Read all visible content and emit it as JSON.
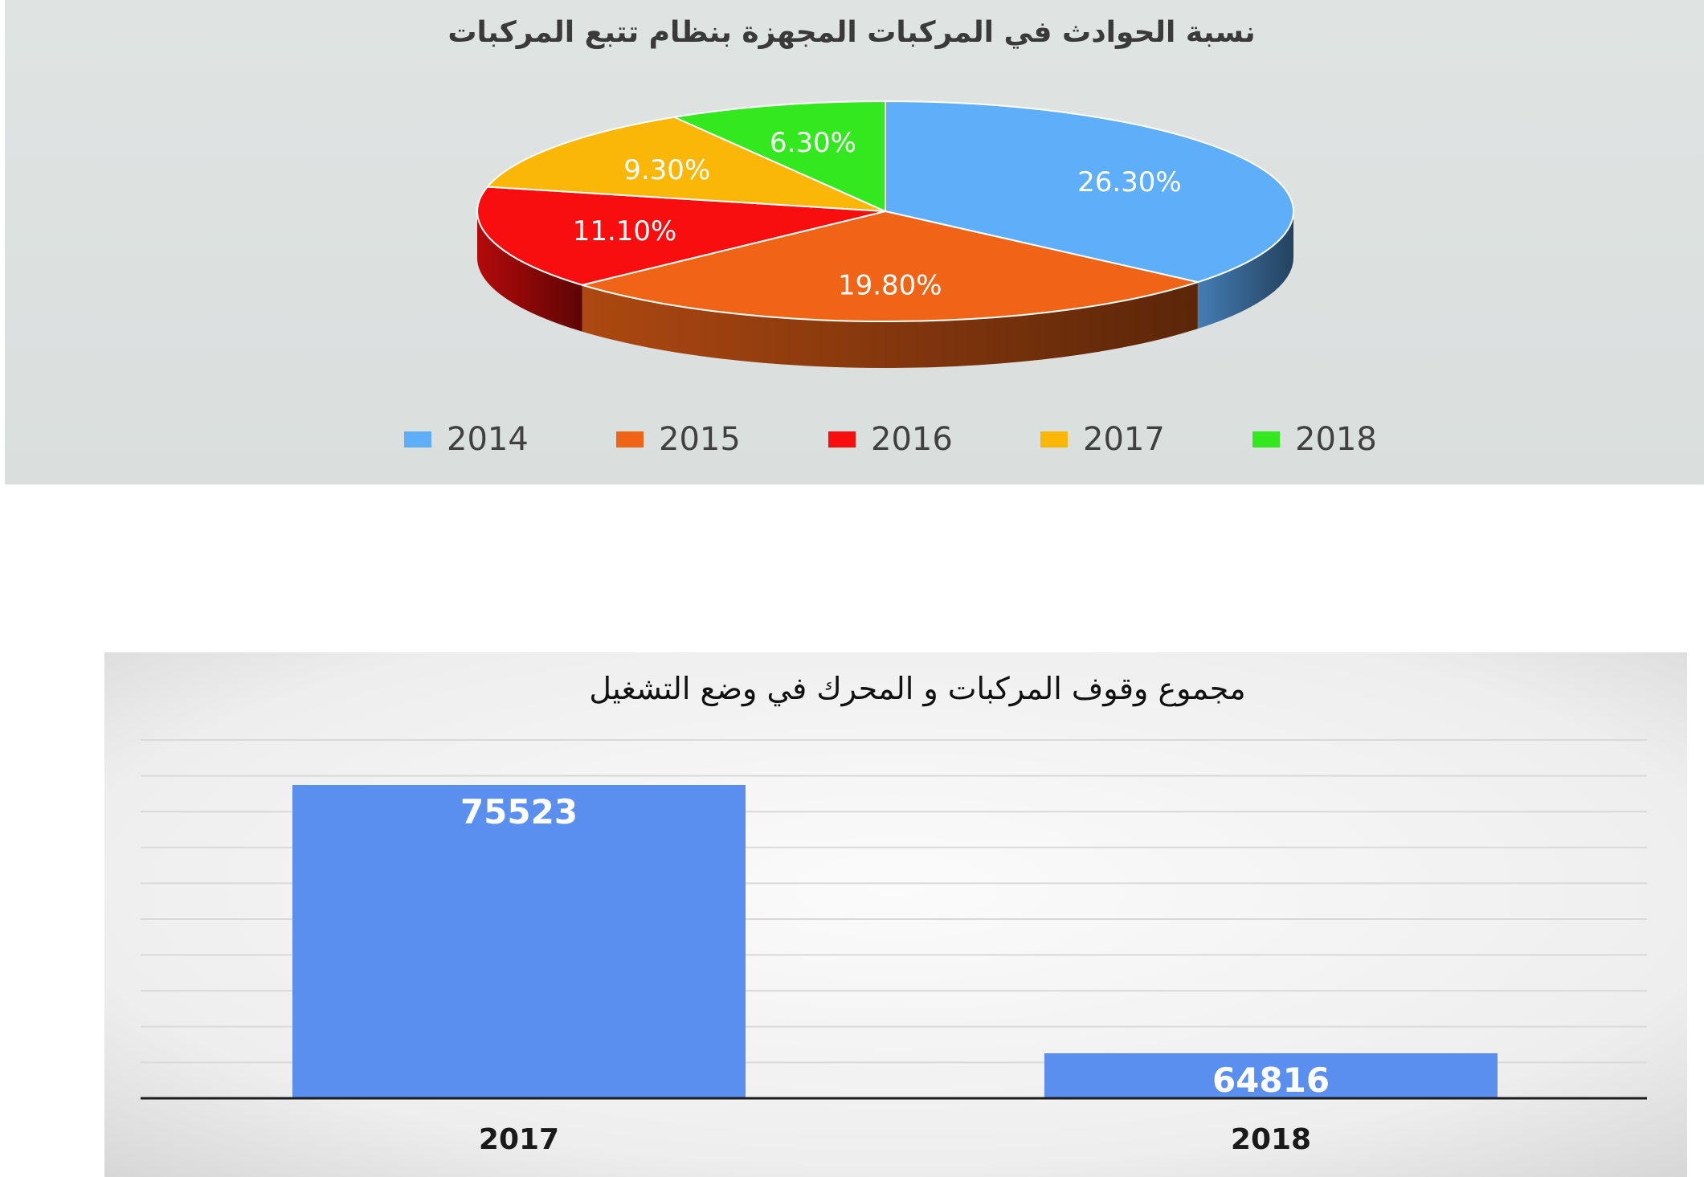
{
  "chart_data": [
    {
      "type": "pie",
      "title": "نسبة الحوادث في المركبات المجهزة بنظام تتبع المركبات",
      "categories": [
        "2014",
        "2015",
        "2016",
        "2017",
        "2018"
      ],
      "values": [
        26.3,
        19.8,
        11.1,
        9.3,
        6.3
      ],
      "value_labels": [
        "26.30%",
        "19.80%",
        "11.10%",
        "9.30%",
        "6.30%"
      ],
      "colors": [
        "#5eaefa",
        "#f06418",
        "#f80e0e",
        "#fbb708",
        "#33e81e"
      ],
      "legend": "bottom",
      "style": "3d"
    },
    {
      "type": "bar",
      "title": "مجموع وقوف المركبات و المحرك في وضع التشغيل",
      "categories": [
        "2017",
        "2018"
      ],
      "values": [
        75523,
        64816
      ],
      "value_labels": [
        "75523",
        "64816"
      ],
      "color": "#5a8ff0",
      "grid": true
    }
  ]
}
